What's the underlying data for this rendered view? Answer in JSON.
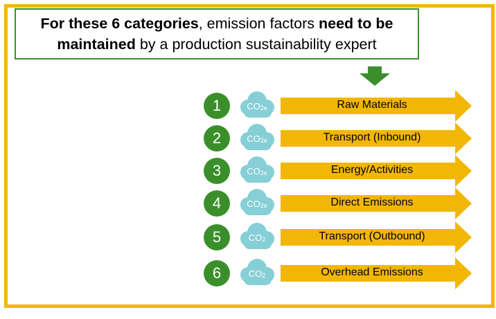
{
  "callout": {
    "part1_bold": "For these 6 categories",
    "part2": ", emission factors ",
    "part3_bold": "need to be maintained",
    "part4": " by a production sustainability expert"
  },
  "colors": {
    "frame": "#F2B705",
    "green": "#3A8F2B",
    "arrow": "#F2B705",
    "cloud": "#86CFD6"
  },
  "categories": [
    {
      "number": "1",
      "co2_label": "CO",
      "co2_sub": "2e",
      "name": "Raw Materials"
    },
    {
      "number": "2",
      "co2_label": "CO",
      "co2_sub": "2e",
      "name": "Transport (Inbound)"
    },
    {
      "number": "3",
      "co2_label": "CO",
      "co2_sub": "2e",
      "name": "Energy/Activities"
    },
    {
      "number": "4",
      "co2_label": "CO",
      "co2_sub": "2e",
      "name": "Direct Emissions"
    },
    {
      "number": "5",
      "co2_label": "CO",
      "co2_sub": "2",
      "name": "Transport (Outbound)"
    },
    {
      "number": "6",
      "co2_label": "CO",
      "co2_sub": "2",
      "name": "Overhead Emissions"
    }
  ]
}
